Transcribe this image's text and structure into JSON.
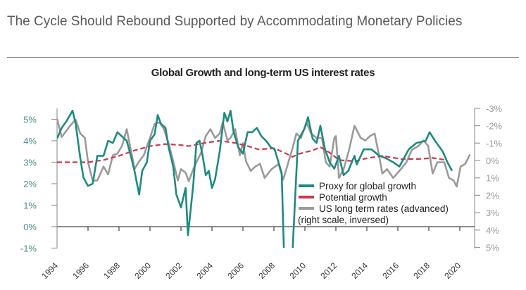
{
  "header": {
    "title": "The Cycle Should Rebound Supported by Accommodating Monetary Policies"
  },
  "chart_data": {
    "type": "line",
    "title": "Global Growth and long-term US interest rates",
    "xlim": [
      1994,
      2021
    ],
    "x_ticks": [
      "1994",
      "1996",
      "1998",
      "2000",
      "2002",
      "2004",
      "2006",
      "2008",
      "2010",
      "2012",
      "2014",
      "2016",
      "2018",
      "2020"
    ],
    "left_axis": {
      "ylim": [
        -1,
        5
      ],
      "tick_labels": [
        "5%",
        "4%",
        "3%",
        "2%",
        "1%",
        "0%",
        "-1%"
      ],
      "color": "#4a8f8c"
    },
    "right_axis": {
      "ylim": [
        -3,
        5
      ],
      "inverted": true,
      "tick_labels": [
        "-3%",
        "-2%",
        "-1%",
        "0%",
        "1%",
        "2%",
        "3%",
        "4%",
        "5%"
      ],
      "color": "#9a9a9a"
    },
    "legend": {
      "placement": "center-right",
      "note": "(right scale, inversed)"
    },
    "series": [
      {
        "name": "Proxy for global growth",
        "axis": "left",
        "color": "#1f8a80",
        "x": [
          1994.0,
          1994.3,
          1994.6,
          1995.0,
          1995.2,
          1995.5,
          1995.7,
          1996.0,
          1996.3,
          1996.6,
          1997.0,
          1997.3,
          1997.6,
          1997.9,
          1998.2,
          1998.5,
          1998.8,
          1999.0,
          1999.3,
          1999.5,
          1999.8,
          2000.0,
          2000.3,
          2000.5,
          2000.7,
          2001.0,
          2001.2,
          2001.5,
          2001.7,
          2002.0,
          2002.3,
          2002.45,
          2002.6,
          2002.8,
          2003.0,
          2003.2,
          2003.4,
          2003.6,
          2003.8,
          2004.0,
          2004.2,
          2004.5,
          2004.8,
          2005.0,
          2005.2,
          2005.4,
          2005.7,
          2006.0,
          2006.3,
          2006.6,
          2006.9,
          2007.2,
          2007.5,
          2007.8,
          2008.05,
          2008.5,
          2008.65,
          2009.2,
          2009.55,
          2010.0,
          2010.2,
          2010.5,
          2010.75,
          2011.0,
          2011.3,
          2011.6,
          2011.9,
          2012.2,
          2012.5,
          2012.8,
          2013.2,
          2013.35,
          2013.8,
          2014.3,
          2014.8,
          2015.2,
          2015.7,
          2016.1,
          2016.7,
          2017.2,
          2017.8,
          2018.05,
          2018.4,
          2018.9,
          2019.2,
          2019.5
        ],
        "values": [
          4.1,
          4.6,
          4.9,
          5.4,
          4.8,
          3.2,
          2.3,
          1.9,
          2.0,
          3.3,
          3.3,
          4.0,
          3.9,
          4.4,
          4.2,
          4.0,
          3.2,
          2.6,
          1.5,
          2.6,
          3.0,
          4.0,
          4.3,
          5.2,
          4.8,
          4.6,
          3.7,
          2.8,
          1.5,
          0.9,
          1.8,
          -0.4,
          0.6,
          2.0,
          3.9,
          4.0,
          3.3,
          2.4,
          2.6,
          1.8,
          2.2,
          3.5,
          5.3,
          4.9,
          5.4,
          4.4,
          3.7,
          3.4,
          4.4,
          4.4,
          4.6,
          4.2,
          4.0,
          3.7,
          3.6,
          2.5,
          -1.2,
          -1.2,
          4.0,
          4.6,
          5.1,
          4.1,
          3.9,
          4.7,
          3.6,
          3.0,
          2.7,
          3.3,
          2.4,
          2.6,
          3.3,
          2.9,
          3.6,
          3.6,
          3.3,
          3.2,
          3.0,
          2.8,
          3.6,
          3.9,
          4.0,
          4.4,
          4.0,
          3.5,
          3.0,
          2.6
        ]
      },
      {
        "name": "Potential growth",
        "axis": "left",
        "color": "#d0374a",
        "x": [
          1994,
          1996,
          1997,
          1998,
          1999,
          2000,
          2001,
          2002,
          2002.5,
          2003.5,
          2004.5,
          2005.5,
          2006.3,
          2007,
          2008.05,
          2008.8,
          2009.2,
          2009.65,
          2010.5,
          2011,
          2011.6,
          2012.2,
          2013.2,
          2014.1,
          2015,
          2016.2,
          2017.35,
          2018.25,
          2019.15
        ],
        "values": [
          3.0,
          3.0,
          3.1,
          3.3,
          3.55,
          3.75,
          3.85,
          3.8,
          3.75,
          3.9,
          4.0,
          3.9,
          3.75,
          3.6,
          3.65,
          3.4,
          3.25,
          3.4,
          3.55,
          3.7,
          3.45,
          3.1,
          3.05,
          3.2,
          3.3,
          3.15,
          3.15,
          3.2,
          3.1
        ]
      },
      {
        "name": "US long term rates (advanced)",
        "axis": "right",
        "color": "#9a9a9a",
        "x": [
          1994.0,
          1994.3,
          1994.8,
          1995.2,
          1995.5,
          1995.8,
          1996.0,
          1996.3,
          1996.6,
          1997.0,
          1997.3,
          1997.6,
          1997.9,
          1998.2,
          1998.5,
          1998.8,
          1999.0,
          1999.3,
          1999.6,
          2000.0,
          2000.3,
          2000.6,
          2000.9,
          2001.2,
          2001.5,
          2001.8,
          2002.0,
          2002.3,
          2002.5,
          2002.8,
          2003.0,
          2003.3,
          2003.6,
          2003.9,
          2004.2,
          2004.5,
          2004.7,
          2005.0,
          2005.2,
          2005.5,
          2005.8,
          2006.0,
          2006.2,
          2006.5,
          2006.8,
          2007.1,
          2007.4,
          2007.85,
          2008.3,
          2008.6,
          2008.9,
          2009.2,
          2009.45,
          2009.75,
          2010.1,
          2010.4,
          2010.75,
          2011.1,
          2011.35,
          2011.6,
          2011.9,
          2012.0,
          2012.2,
          2012.5,
          2012.85,
          2013.2,
          2013.6,
          2013.9,
          2014.2,
          2014.5,
          2014.75,
          2015.0,
          2015.3,
          2015.7,
          2016.2,
          2016.55,
          2016.9,
          2017.35,
          2017.65,
          2017.95,
          2018.25,
          2018.55,
          2019.0,
          2019.3,
          2019.6,
          2019.8,
          2020.05,
          2020.35,
          2020.65
        ],
        "values": [
          -2.4,
          -1.35,
          -1.95,
          -2.35,
          -1.55,
          -1.3,
          0.1,
          1.15,
          1.15,
          0.35,
          0.8,
          -0.3,
          -0.4,
          -0.85,
          -1.8,
          -0.45,
          0.5,
          0.05,
          -0.3,
          -1.3,
          -2.1,
          -2.2,
          -1.8,
          -1.0,
          0.05,
          1.15,
          0.5,
          0.7,
          1.2,
          0.5,
          0.1,
          -0.45,
          -1.4,
          -1.8,
          -1.3,
          -1.55,
          -2.2,
          -1.15,
          -1.3,
          -1.8,
          -0.3,
          -1.0,
          0.05,
          0.6,
          0.35,
          0.2,
          1.0,
          0.5,
          0.2,
          1.1,
          0.2,
          -0.7,
          -1.55,
          -1.3,
          -2.2,
          -1.55,
          -1.3,
          -1.3,
          0.1,
          0.35,
          -1.3,
          -1.4,
          1.0,
          0.5,
          -0.6,
          -2.0,
          -1.3,
          -1.15,
          -1.4,
          -1.55,
          -0.45,
          0.75,
          0.5,
          1.0,
          0.5,
          0.1,
          -0.6,
          -0.85,
          -1.15,
          -0.85,
          0.75,
          0.1,
          0.1,
          1.0,
          1.15,
          1.5,
          0.35,
          0.2,
          -0.35
        ]
      }
    ]
  }
}
